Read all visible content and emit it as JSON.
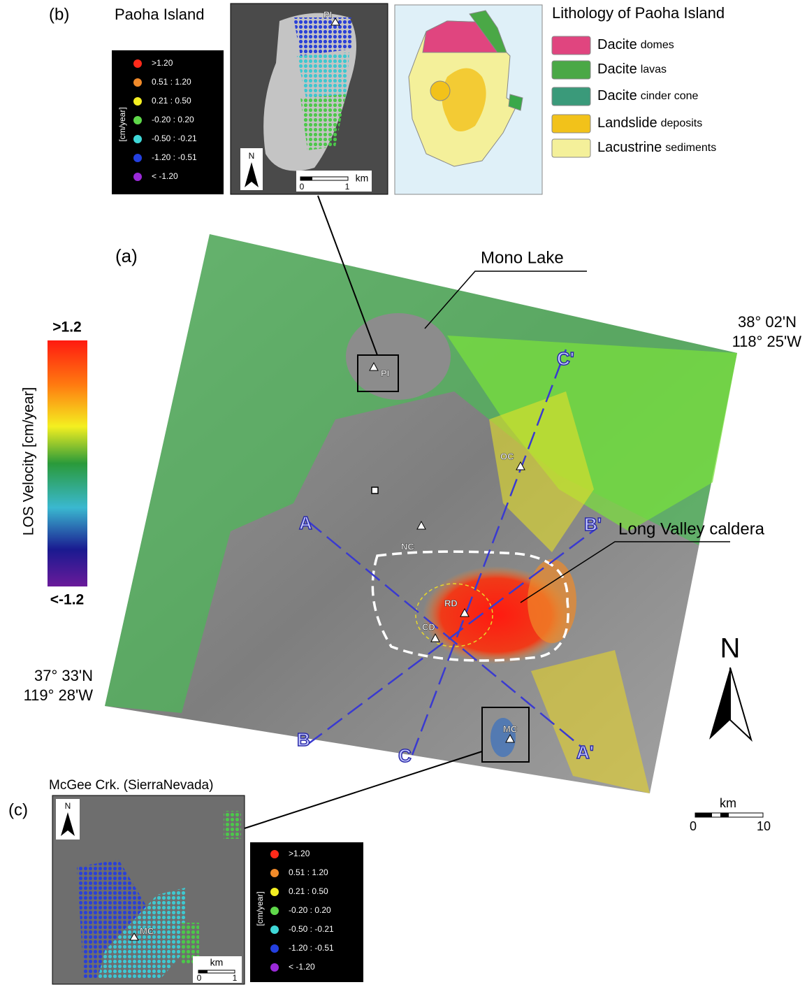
{
  "panel_b": {
    "label": "(b)",
    "title": "Paoha Island",
    "site": "PI",
    "north": "N",
    "scale": {
      "unit": "km",
      "ticks": [
        0,
        1
      ]
    },
    "legend": {
      "unit": "[cm/year]",
      "items": [
        {
          "label": ">1.20",
          "color": "#ff2a1a"
        },
        {
          "label": "0.51 : 1.20",
          "color": "#f08a2a"
        },
        {
          "label": "0.21 : 0.50",
          "color": "#f4ef22"
        },
        {
          "label": "-0.20 :  0.20",
          "color": "#5fd84a"
        },
        {
          "label": "-0.50 : -0.21",
          "color": "#3fd8d8"
        },
        {
          "label": "-1.20 : -0.51",
          "color": "#2440e0"
        },
        {
          "label": "< -1.20",
          "color": "#9a2ad8"
        }
      ]
    }
  },
  "lithology": {
    "title": "Lithology of Paoha Island",
    "items": [
      {
        "rock": "Dacite",
        "unit": "domes",
        "color": "#e0457f"
      },
      {
        "rock": "Dacite",
        "unit": "lavas",
        "color": "#4aa846"
      },
      {
        "rock": "Dacite",
        "unit": "cinder cone",
        "color": "#3a9a7a"
      },
      {
        "rock": "Landslide",
        "unit": "deposits",
        "color": "#f2c21a"
      },
      {
        "rock": "Lacustrine",
        "unit": "sediments",
        "color": "#f4f09a"
      }
    ]
  },
  "panel_a": {
    "label": "(a)",
    "lake": "Mono Lake",
    "caldera": "Long Valley caldera",
    "corner_ne": {
      "lat": "38° 02'N",
      "lon": "118° 25'W"
    },
    "corner_sw": {
      "lat": "37° 33'N",
      "lon": "119° 28'W"
    },
    "sites": [
      "PI",
      "OC",
      "NC",
      "RD",
      "CD",
      "MC"
    ],
    "profiles": [
      "A",
      "A'",
      "B",
      "B'",
      "C",
      "C'"
    ],
    "colorbar": {
      "title": "LOS Velocity [cm/year]",
      "max": ">1.2",
      "min": "<-1.2"
    },
    "north": "N",
    "scale": {
      "unit": "km",
      "ticks": [
        0,
        10
      ]
    }
  },
  "panel_c": {
    "label": "(c)",
    "title": "McGee Crk. (SierraNevada)",
    "site": "MC",
    "north": "N",
    "scale": {
      "unit": "km",
      "ticks": [
        0,
        1
      ]
    },
    "legend": {
      "unit": "[cm/year]",
      "items": [
        {
          "label": ">1.20",
          "color": "#ff2a1a"
        },
        {
          "label": "0.51 : 1.20",
          "color": "#f08a2a"
        },
        {
          "label": "0.21 : 0.50",
          "color": "#f4ef22"
        },
        {
          "label": "-0.20 :  0.20",
          "color": "#5fd84a"
        },
        {
          "label": "-0.50 : -0.21",
          "color": "#3fd8d8"
        },
        {
          "label": "-1.20 : -0.51",
          "color": "#2440e0"
        },
        {
          "label": "< -1.20",
          "color": "#9a2ad8"
        }
      ]
    }
  }
}
